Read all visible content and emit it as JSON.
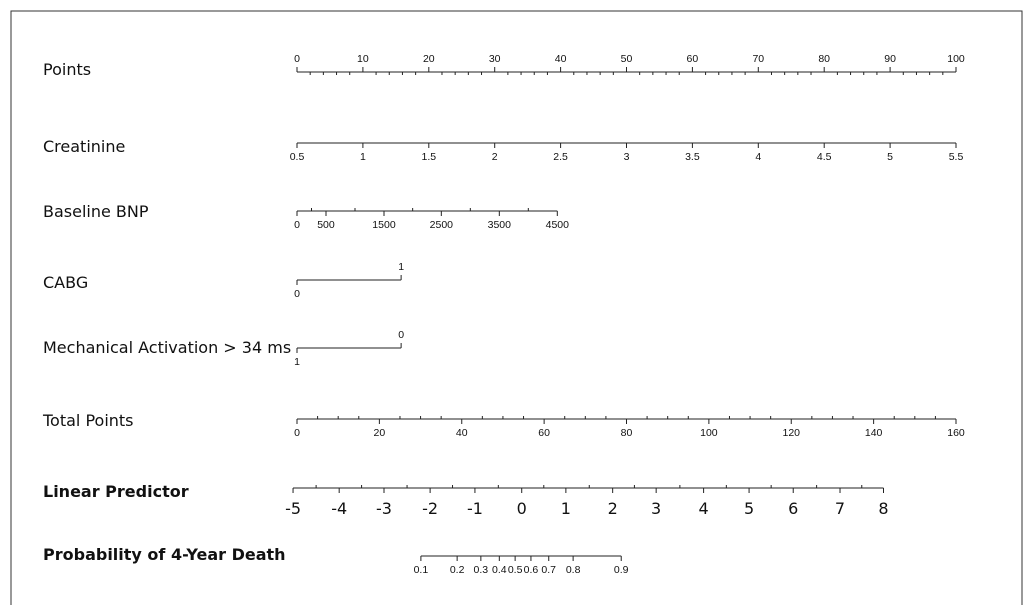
{
  "chart_data": {
    "type": "nomogram",
    "scales": [
      {
        "label": "Points",
        "ticks": [
          0,
          10,
          20,
          30,
          40,
          50,
          60,
          70,
          80,
          90,
          100
        ],
        "points": [
          0,
          10,
          20,
          30,
          40,
          50,
          60,
          70,
          80,
          90,
          100
        ],
        "tick_labels": "above",
        "minor_ticks": 4
      },
      {
        "label": "Creatinine",
        "ticks": [
          0.5,
          1,
          1.5,
          2,
          2.5,
          3,
          3.5,
          4,
          4.5,
          5,
          5.5
        ],
        "points": [
          0,
          10,
          20,
          30,
          40,
          50,
          60,
          70,
          80,
          90,
          100
        ],
        "tick_labels": "below",
        "minor_ticks": 0
      },
      {
        "label": "Baseline BNP",
        "ticks": [
          0,
          500,
          1500,
          2500,
          3500,
          4500
        ],
        "points": [
          0,
          4.4,
          13.2,
          21.9,
          30.7,
          39.5
        ],
        "tick_labels": "below",
        "minor_ticks": 1
      },
      {
        "label": "CABG",
        "ticks": [
          0,
          1
        ],
        "points": [
          0,
          15.8
        ],
        "tick_labels": "alternate",
        "minor_ticks": 0
      },
      {
        "label": "Mechanical Activation > 34 ms",
        "ticks": [
          1,
          0
        ],
        "points": [
          0,
          15.8
        ],
        "tick_labels": "alternate",
        "minor_ticks": 0
      },
      {
        "label": "Total Points",
        "ticks": [
          0,
          20,
          40,
          60,
          80,
          100,
          120,
          140,
          160
        ],
        "points": [
          0,
          12.5,
          25,
          37.5,
          50,
          62.5,
          75,
          87.5,
          100
        ],
        "tick_labels": "below",
        "minor_ticks": 3
      },
      {
        "label": "Linear Predictor",
        "ticks": [
          -5,
          -4,
          -3,
          -2,
          -1,
          0,
          1,
          2,
          3,
          4,
          5,
          6,
          7,
          8
        ],
        "points": [
          -0.6,
          6.4,
          13.2,
          20.2,
          27.0,
          34.1,
          40.8,
          47.9,
          54.5,
          61.7,
          68.6,
          75.3,
          82.4,
          89.0
        ],
        "tick_labels": "below",
        "minor_ticks": 1,
        "bold": true,
        "large_ticks": true
      },
      {
        "label": "Probability of 4-Year Death",
        "ticks": [
          0.1,
          0.2,
          0.3,
          0.4,
          0.5,
          0.6,
          0.7,
          0.8,
          0.9
        ],
        "points": [
          18.8,
          24.3,
          27.9,
          30.7,
          33.1,
          35.5,
          38.2,
          41.9,
          49.2
        ],
        "tick_labels": "below",
        "minor_ticks": 0,
        "bold": true
      }
    ]
  }
}
